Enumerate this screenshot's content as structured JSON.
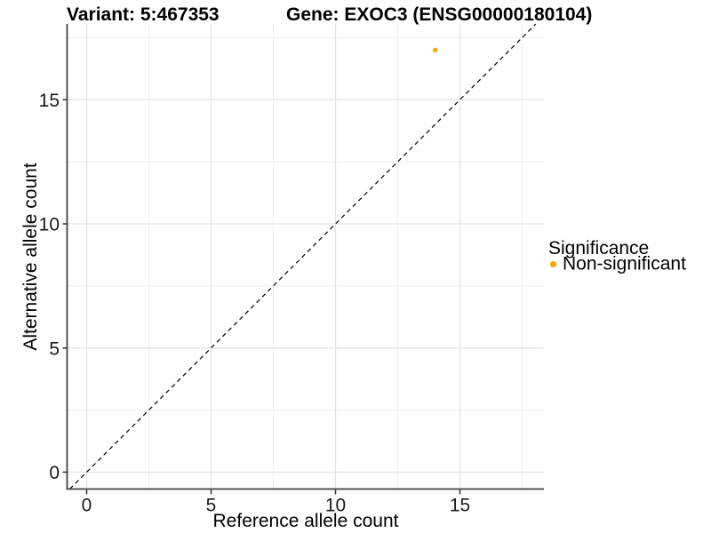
{
  "chart_data": {
    "type": "scatter",
    "title_left": "Variant: 5:467353",
    "title_right": "Gene: EXOC3 (ENSG00000180104)",
    "xlabel": "Reference allele count",
    "ylabel": "Alternative allele count",
    "x_ticks": [
      0,
      5,
      10,
      15
    ],
    "y_ticks": [
      0,
      5,
      10,
      15
    ],
    "x_minor_gridlines": [
      2.5,
      7.5,
      12.5,
      17.5
    ],
    "y_minor_gridlines": [
      2.5,
      7.5,
      12.5,
      17.5
    ],
    "xlim": [
      -0.7,
      18.4
    ],
    "ylim": [
      -0.68,
      18.05
    ],
    "grid": true,
    "identity_line": {
      "slope": 1,
      "intercept": 0,
      "style": "dashed",
      "color": "#000000"
    },
    "series": [
      {
        "name": "Non-significant",
        "color": "#FFA500",
        "points": [
          {
            "x": 14,
            "y": 17
          }
        ]
      }
    ],
    "legend": {
      "title": "Significance",
      "position": "right",
      "items": [
        {
          "label": "Non-significant",
          "color": "#FFA500"
        }
      ]
    },
    "colors": {
      "axis_line": "#404040",
      "tick_mark": "#333333",
      "grid_major": "#e3e3e3",
      "grid_minor": "#eeeeee"
    }
  }
}
